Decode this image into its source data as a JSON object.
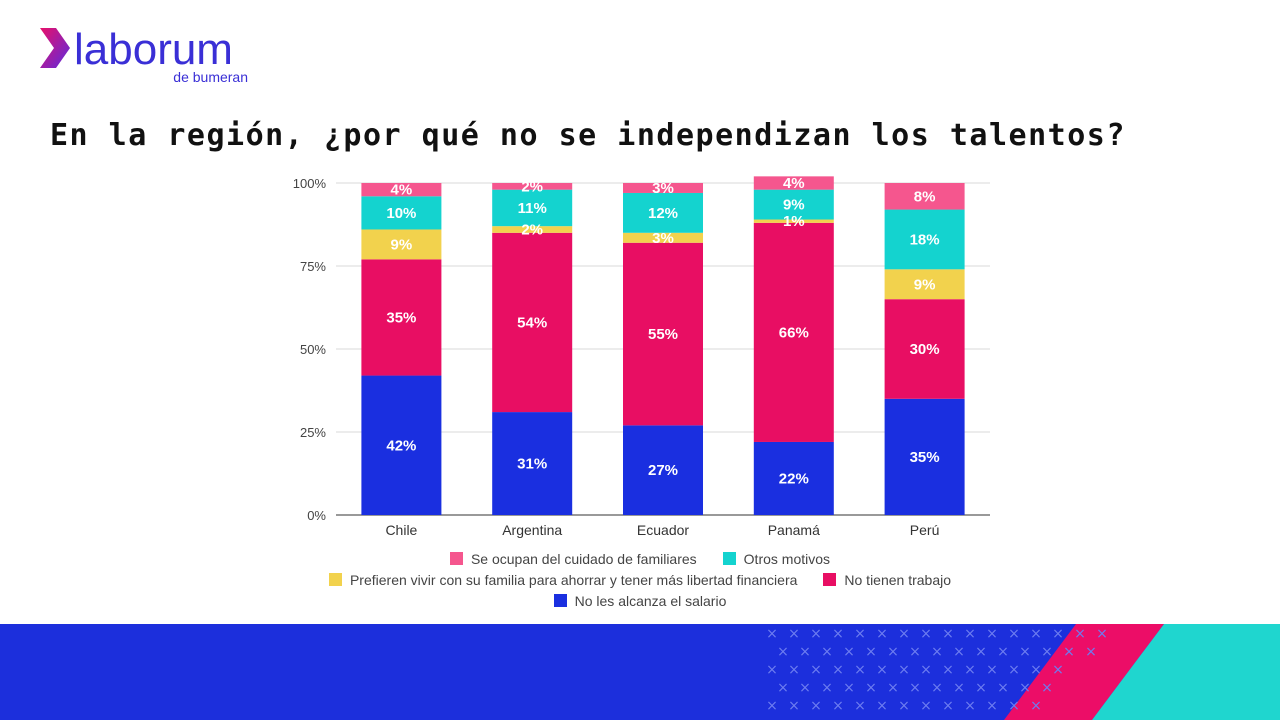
{
  "brand": {
    "name": "laborum",
    "tagline": "de bumeran"
  },
  "title": "En la región, ¿por qué no se independizan los talentos?",
  "colors": {
    "brand_purple": "#5b2be0",
    "brand_magenta": "#e8106a",
    "footer_blue": "#1c2fdc",
    "footer_pink": "#ec0d67",
    "footer_teal": "#1fd6cf"
  },
  "chart_data": {
    "type": "bar",
    "stacked": true,
    "categories": [
      "Chile",
      "Argentina",
      "Ecuador",
      "Panamá",
      "Perú"
    ],
    "ylim": [
      0,
      100
    ],
    "yticks": [
      "0%",
      "25%",
      "50%",
      "75%",
      "100%"
    ],
    "grid": true,
    "legend_position": "bottom",
    "series": [
      {
        "name": "No les alcanza el salario",
        "color": "#1a2fe0",
        "values": [
          42,
          31,
          27,
          22,
          35
        ],
        "labels": [
          "42%",
          "31%",
          "27%",
          "22%",
          "35%"
        ]
      },
      {
        "name": "No tienen trabajo",
        "color": "#e80e63",
        "values": [
          35,
          54,
          55,
          66,
          30
        ],
        "labels": [
          "35%",
          "54%",
          "55%",
          "66%",
          "30%"
        ]
      },
      {
        "name": "Prefieren vivir con su familia para ahorrar y tener más libertad financiera",
        "color": "#f2d24d",
        "values": [
          9,
          2,
          3,
          1,
          9
        ],
        "labels": [
          "9%",
          "2%",
          "3%",
          "1%",
          "9%"
        ]
      },
      {
        "name": "Otros motivos",
        "color": "#14d3cf",
        "values": [
          10,
          11,
          12,
          9,
          18
        ],
        "labels": [
          "10%",
          "11%",
          "12%",
          "9%",
          "18%"
        ]
      },
      {
        "name": "Se ocupan del cuidado de familiares",
        "color": "#f5568e",
        "values": [
          4,
          2,
          3,
          4,
          8
        ],
        "labels": [
          "4%",
          "2%",
          "3%",
          "4%",
          "8%"
        ]
      }
    ],
    "legend_order": [
      [
        "Se ocupan del cuidado de familiares",
        "Otros motivos"
      ],
      [
        "Prefieren vivir con su familia para ahorrar y tener más libertad financiera",
        "No tienen trabajo"
      ],
      [
        "No les alcanza el salario"
      ]
    ]
  }
}
